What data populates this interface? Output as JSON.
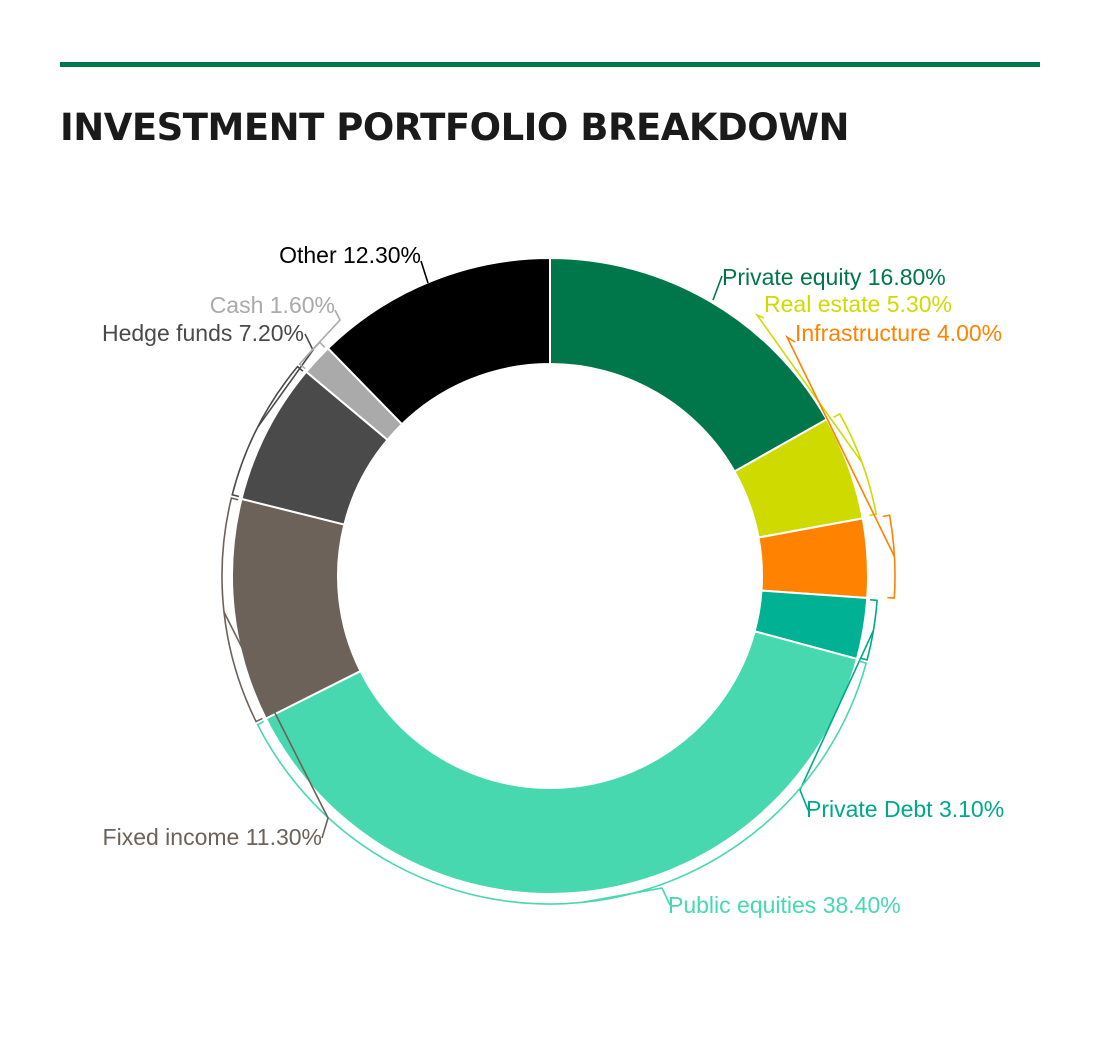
{
  "title": "INVESTMENT PORTFOLIO BREAKDOWN",
  "colors": {
    "accent": "#00774a",
    "title": "#1a1a1a"
  },
  "chart_data": {
    "type": "pie",
    "variant": "donut",
    "title": "INVESTMENT PORTFOLIO BREAKDOWN",
    "unit": "%",
    "slices": [
      {
        "label": "Private equity",
        "value": 16.8,
        "display": "16.80%",
        "color": "#00774a"
      },
      {
        "label": "Real estate",
        "value": 5.3,
        "display": "5.30%",
        "color": "#cfdb00"
      },
      {
        "label": "Infrastructure",
        "value": 4.0,
        "display": "4.00%",
        "color": "#ff8200"
      },
      {
        "label": "Private Debt",
        "value": 3.1,
        "display": "3.10%",
        "color": "#00b193"
      },
      {
        "label": "Public equities",
        "value": 38.4,
        "display": "38.40%",
        "color": "#48d8b0"
      },
      {
        "label": "Fixed income",
        "value": 11.3,
        "display": "11.30%",
        "color": "#6d6259"
      },
      {
        "label": "Hedge funds",
        "value": 7.2,
        "display": "7.20%",
        "color": "#4a4a4a"
      },
      {
        "label": "Cash",
        "value": 1.6,
        "display": "1.60%",
        "color": "#aaaaaa"
      },
      {
        "label": "Other",
        "value": 12.3,
        "display": "12.30%",
        "color": "#000000"
      }
    ],
    "label_colors": {
      "Private equity": "#00774a",
      "Real estate": "#cfdb00",
      "Infrastructure": "#ff8200",
      "Private Debt": "#00a88b",
      "Public equities": "#48d8b0",
      "Fixed income": "#6d6259",
      "Hedge funds": "#4a4a4a",
      "Cash": "#aaaaaa",
      "Other": "#000000"
    },
    "start_angle_deg": 0,
    "direction": "clockwise",
    "legend": "none"
  }
}
